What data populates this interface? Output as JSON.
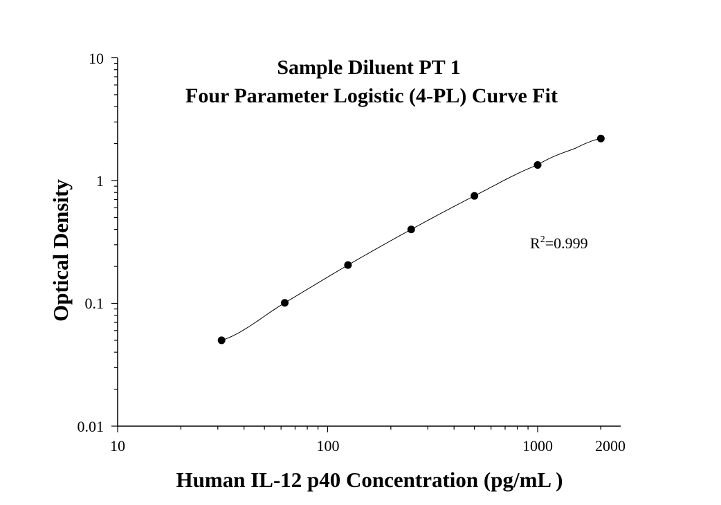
{
  "chart_data": {
    "type": "scatter",
    "title": [
      "Sample Diluent PT 1",
      "Four Parameter Logistic (4-PL) Curve Fit"
    ],
    "xlabel": "Human IL-12 p40 Concentration (pg/mL )",
    "ylabel": "Optical Density",
    "x_scale": "log",
    "y_scale": "log",
    "xlim": [
      10,
      2000
    ],
    "ylim": [
      0.01,
      10
    ],
    "x_ticks": [
      "10",
      "100",
      "1000",
      "2000"
    ],
    "y_ticks": [
      "0.01",
      "0.1",
      "1",
      "10"
    ],
    "grid": false,
    "legend": "none",
    "marker_color": "#000000",
    "line_color": "#000000",
    "series": [
      {
        "x": [
          31.25,
          62.5,
          125,
          250,
          500,
          1000,
          2000
        ],
        "y": [
          0.05,
          0.101,
          0.205,
          0.4,
          0.75,
          1.34,
          2.2
        ]
      }
    ],
    "fit_curve": {
      "x": [
        31.25,
        62.5,
        125,
        250,
        500,
        1000,
        1500,
        2000
      ],
      "y": [
        0.05,
        0.101,
        0.205,
        0.4,
        0.75,
        1.34,
        1.82,
        2.2
      ]
    },
    "annotation": {
      "base": "R",
      "superscript": "2",
      "rest": "=0.999"
    }
  }
}
